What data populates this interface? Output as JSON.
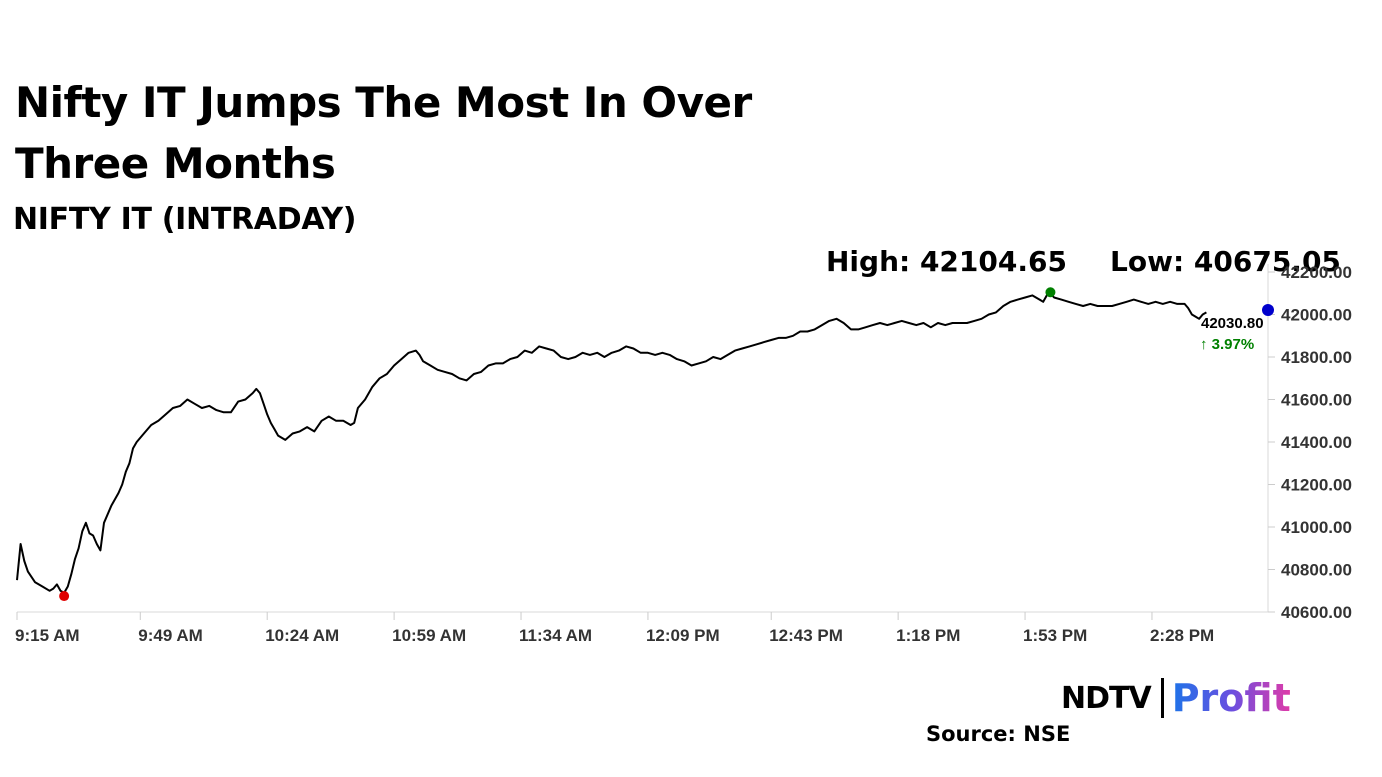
{
  "headline": "Nifty IT Jumps The Most In Over Three Months",
  "subtitle": "NIFTY IT (INTRADAY)",
  "stats": {
    "high": "High: 42104.65",
    "low": "Low: 40675.05"
  },
  "last_value": "42030.80",
  "change": "↑ 3.97%",
  "source": "Source: NSE",
  "logo": {
    "brand": "NDTV",
    "product": "Profit"
  },
  "colors": {
    "line": "#000000",
    "high_marker": "#008000",
    "low_marker": "#e00000",
    "change": "#008000",
    "end_marker": "#0000cc"
  },
  "chart_data": {
    "type": "line",
    "title": "NIFTY IT (INTRADAY)",
    "xlabel": "",
    "ylabel": "",
    "ylim": [
      40600,
      42200
    ],
    "y_ticks": [
      "42200.00",
      "42000.00",
      "41800.00",
      "41600.00",
      "41400.00",
      "41200.00",
      "41000.00",
      "40800.00",
      "40600.00"
    ],
    "x_ticks": [
      "9:15 AM",
      "9:49 AM",
      "10:24 AM",
      "10:59 AM",
      "11:34 AM",
      "12:09 PM",
      "12:43 PM",
      "1:18 PM",
      "1:53 PM",
      "2:28 PM"
    ],
    "x_tick_minutes": [
      0,
      34,
      69,
      104,
      139,
      174,
      208,
      243,
      278,
      313
    ],
    "x_range_minutes": [
      0,
      345
    ],
    "grid": false,
    "series": [
      {
        "points": [
          [
            0,
            40750
          ],
          [
            1,
            40920
          ],
          [
            2,
            40840
          ],
          [
            3,
            40790
          ],
          [
            5,
            40740
          ],
          [
            7,
            40720
          ],
          [
            9,
            40700
          ],
          [
            10,
            40710
          ],
          [
            11,
            40730
          ],
          [
            12,
            40700
          ],
          [
            13,
            40690
          ],
          [
            14,
            40720
          ],
          [
            15,
            40780
          ],
          [
            16,
            40850
          ],
          [
            17,
            40900
          ],
          [
            18,
            40980
          ],
          [
            19,
            41020
          ],
          [
            20,
            40970
          ],
          [
            21,
            40960
          ],
          [
            22,
            40920
          ],
          [
            23,
            40890
          ],
          [
            24,
            41020
          ],
          [
            26,
            41100
          ],
          [
            28,
            41160
          ],
          [
            29,
            41200
          ],
          [
            30,
            41260
          ],
          [
            31,
            41300
          ],
          [
            32,
            41370
          ],
          [
            33,
            41400
          ],
          [
            35,
            41440
          ],
          [
            37,
            41480
          ],
          [
            39,
            41500
          ],
          [
            41,
            41530
          ],
          [
            43,
            41560
          ],
          [
            45,
            41570
          ],
          [
            47,
            41600
          ],
          [
            49,
            41580
          ],
          [
            51,
            41560
          ],
          [
            53,
            41570
          ],
          [
            55,
            41550
          ],
          [
            57,
            41540
          ],
          [
            59,
            41540
          ],
          [
            61,
            41590
          ],
          [
            63,
            41600
          ],
          [
            65,
            41630
          ],
          [
            66,
            41650
          ],
          [
            67,
            41630
          ],
          [
            68,
            41580
          ],
          [
            69,
            41530
          ],
          [
            70,
            41490
          ],
          [
            71,
            41460
          ],
          [
            72,
            41430
          ],
          [
            74,
            41410
          ],
          [
            76,
            41440
          ],
          [
            78,
            41450
          ],
          [
            80,
            41470
          ],
          [
            82,
            41450
          ],
          [
            84,
            41500
          ],
          [
            86,
            41520
          ],
          [
            88,
            41500
          ],
          [
            90,
            41500
          ],
          [
            92,
            41480
          ],
          [
            93,
            41490
          ],
          [
            94,
            41560
          ],
          [
            96,
            41600
          ],
          [
            98,
            41660
          ],
          [
            100,
            41700
          ],
          [
            102,
            41720
          ],
          [
            104,
            41760
          ],
          [
            106,
            41790
          ],
          [
            108,
            41820
          ],
          [
            110,
            41830
          ],
          [
            111,
            41810
          ],
          [
            112,
            41780
          ],
          [
            114,
            41760
          ],
          [
            116,
            41740
          ],
          [
            118,
            41730
          ],
          [
            120,
            41720
          ],
          [
            122,
            41700
          ],
          [
            124,
            41690
          ],
          [
            126,
            41720
          ],
          [
            128,
            41730
          ],
          [
            130,
            41760
          ],
          [
            132,
            41770
          ],
          [
            134,
            41770
          ],
          [
            136,
            41790
          ],
          [
            138,
            41800
          ],
          [
            140,
            41830
          ],
          [
            142,
            41820
          ],
          [
            144,
            41850
          ],
          [
            146,
            41840
          ],
          [
            148,
            41830
          ],
          [
            150,
            41800
          ],
          [
            152,
            41790
          ],
          [
            154,
            41800
          ],
          [
            156,
            41820
          ],
          [
            158,
            41810
          ],
          [
            160,
            41820
          ],
          [
            162,
            41800
          ],
          [
            164,
            41820
          ],
          [
            166,
            41830
          ],
          [
            168,
            41850
          ],
          [
            170,
            41840
          ],
          [
            172,
            41820
          ],
          [
            174,
            41820
          ],
          [
            176,
            41810
          ],
          [
            178,
            41820
          ],
          [
            180,
            41810
          ],
          [
            182,
            41790
          ],
          [
            184,
            41780
          ],
          [
            186,
            41760
          ],
          [
            188,
            41770
          ],
          [
            190,
            41780
          ],
          [
            192,
            41800
          ],
          [
            194,
            41790
          ],
          [
            196,
            41810
          ],
          [
            198,
            41830
          ],
          [
            200,
            41840
          ],
          [
            202,
            41850
          ],
          [
            204,
            41860
          ],
          [
            206,
            41870
          ],
          [
            208,
            41880
          ],
          [
            210,
            41890
          ],
          [
            212,
            41890
          ],
          [
            214,
            41900
          ],
          [
            216,
            41920
          ],
          [
            218,
            41920
          ],
          [
            220,
            41930
          ],
          [
            222,
            41950
          ],
          [
            224,
            41970
          ],
          [
            226,
            41980
          ],
          [
            228,
            41960
          ],
          [
            230,
            41930
          ],
          [
            232,
            41930
          ],
          [
            234,
            41940
          ],
          [
            236,
            41950
          ],
          [
            238,
            41960
          ],
          [
            240,
            41950
          ],
          [
            242,
            41960
          ],
          [
            244,
            41970
          ],
          [
            246,
            41960
          ],
          [
            248,
            41950
          ],
          [
            250,
            41960
          ],
          [
            252,
            41940
          ],
          [
            254,
            41960
          ],
          [
            256,
            41950
          ],
          [
            258,
            41960
          ],
          [
            260,
            41960
          ],
          [
            262,
            41960
          ],
          [
            264,
            41970
          ],
          [
            266,
            41980
          ],
          [
            268,
            42000
          ],
          [
            270,
            42010
          ],
          [
            272,
            42040
          ],
          [
            274,
            42060
          ],
          [
            276,
            42070
          ],
          [
            278,
            42080
          ],
          [
            280,
            42090
          ],
          [
            282,
            42070
          ],
          [
            283,
            42060
          ],
          [
            284,
            42090
          ],
          [
            285,
            42100
          ],
          [
            286,
            42080
          ],
          [
            288,
            42070
          ],
          [
            290,
            42060
          ],
          [
            292,
            42050
          ],
          [
            294,
            42040
          ],
          [
            296,
            42050
          ],
          [
            298,
            42040
          ],
          [
            300,
            42040
          ],
          [
            302,
            42040
          ],
          [
            304,
            42050
          ],
          [
            306,
            42060
          ],
          [
            308,
            42070
          ],
          [
            310,
            42060
          ],
          [
            312,
            42050
          ],
          [
            314,
            42060
          ],
          [
            316,
            42050
          ],
          [
            318,
            42060
          ],
          [
            320,
            42050
          ],
          [
            322,
            42050
          ],
          [
            323,
            42030
          ],
          [
            324,
            42000
          ],
          [
            325,
            41990
          ],
          [
            326,
            41980
          ],
          [
            327,
            42000
          ],
          [
            328,
            42010
          ]
        ]
      }
    ],
    "high": {
      "minute": 285,
      "value": 42104.65
    },
    "low": {
      "minute": 13,
      "value": 40675.05
    }
  }
}
